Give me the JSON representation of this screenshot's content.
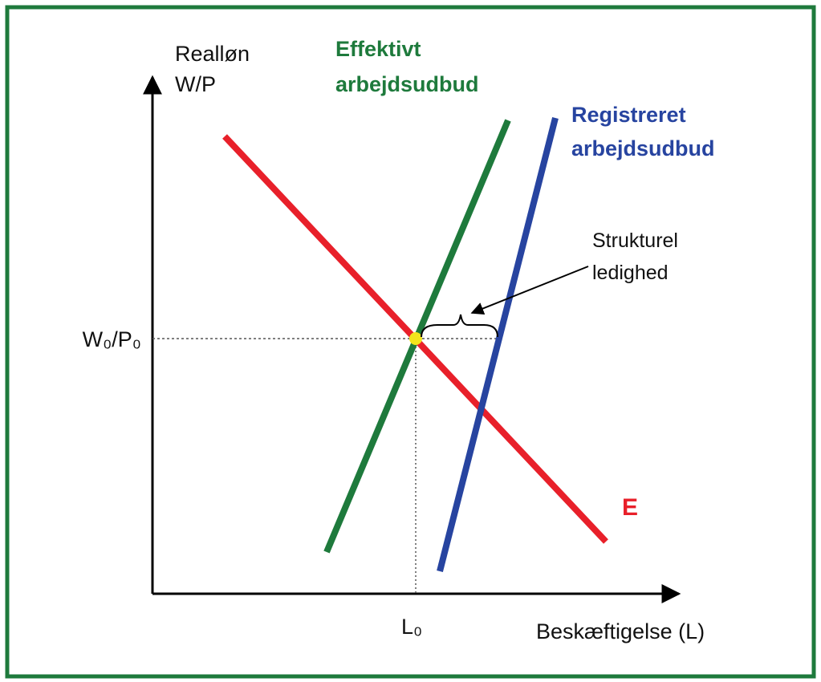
{
  "axes": {
    "y_label": [
      "Realløn",
      "W/P"
    ],
    "x_label": "Beskæftigelse (L)",
    "y_level": "W₀/P₀",
    "x_level": "L₀"
  },
  "curves": {
    "effective_supply": [
      "Effektivt",
      "arbejdsudbud"
    ],
    "registered_supply": [
      "Registreret",
      "arbejdsudbud"
    ],
    "demand": "E"
  },
  "annotation": [
    "Strukturel",
    "ledighed"
  ]
}
